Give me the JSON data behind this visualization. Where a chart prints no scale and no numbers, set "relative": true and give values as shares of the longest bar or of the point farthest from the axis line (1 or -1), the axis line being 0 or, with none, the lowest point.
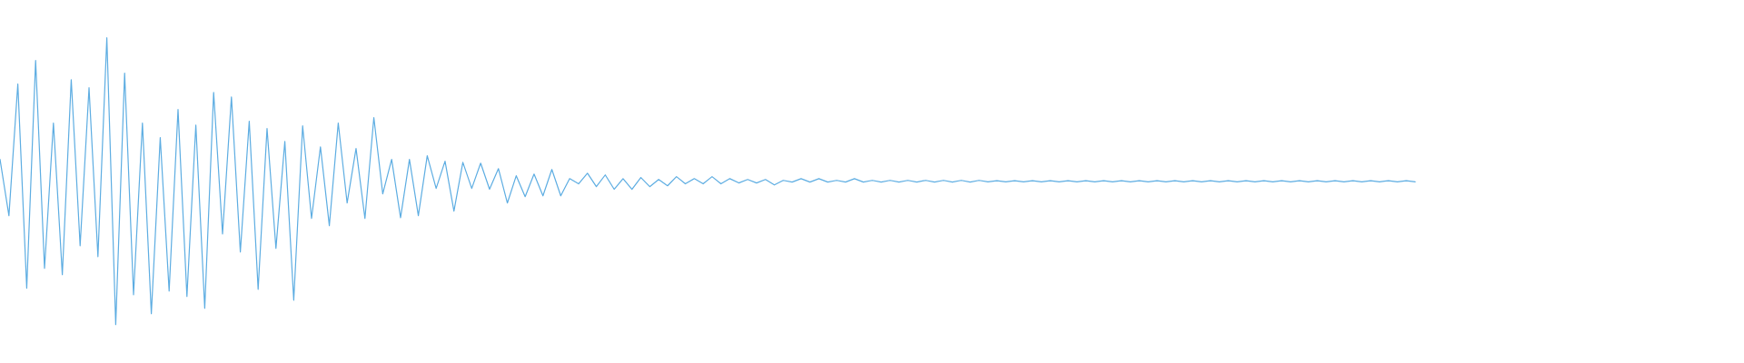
{
  "chart_data": {
    "type": "line",
    "relative": true,
    "color": "#5dade2",
    "categories": [
      null,
      null,
      null,
      null,
      null,
      null,
      null,
      null,
      null,
      null,
      null,
      null,
      null,
      null,
      null,
      null,
      null,
      null,
      null,
      null,
      null,
      null,
      null,
      null,
      null,
      null,
      null,
      null,
      null,
      null,
      null,
      null,
      null,
      null,
      null,
      null,
      null,
      null,
      null,
      null,
      null,
      null,
      null,
      null,
      null,
      null,
      null,
      null,
      null,
      null,
      null,
      null,
      null,
      null,
      null,
      null,
      null,
      null,
      null,
      null,
      null,
      null,
      null,
      null,
      null,
      null,
      null,
      null,
      null,
      null,
      null,
      null,
      null,
      null,
      null,
      null,
      null,
      null,
      null,
      null,
      null,
      null,
      null,
      null,
      null,
      null,
      null,
      null,
      null,
      null,
      null,
      null,
      null,
      null,
      null,
      null,
      null,
      null,
      null,
      null,
      null,
      null,
      null,
      null,
      null,
      null,
      null,
      null,
      null,
      null,
      null,
      null,
      null,
      null,
      null,
      null,
      null,
      null,
      null,
      null,
      null,
      null,
      null,
      null,
      null,
      null,
      null,
      null,
      null,
      null,
      null,
      null,
      null,
      null,
      null,
      null,
      null,
      null,
      null,
      null,
      null,
      null,
      null,
      null,
      null,
      null,
      null,
      null,
      null,
      null,
      null,
      null,
      null,
      null,
      null,
      null,
      null,
      null,
      null,
      null
    ],
    "values": [
      0.576,
      0.38,
      0.839,
      0.127,
      0.921,
      0.196,
      0.703,
      0.174,
      0.854,
      0.275,
      0.826,
      0.237,
      1.0,
      0.0,
      0.877,
      0.104,
      0.703,
      0.038,
      0.652,
      0.117,
      0.75,
      0.098,
      0.696,
      0.057,
      0.81,
      0.316,
      0.794,
      0.253,
      0.709,
      0.123,
      0.684,
      0.266,
      0.639,
      0.085,
      0.693,
      0.37,
      0.62,
      0.345,
      0.703,
      0.424,
      0.614,
      0.37,
      0.722,
      0.456,
      0.576,
      0.373,
      0.576,
      0.38,
      0.589,
      0.475,
      0.57,
      0.396,
      0.566,
      0.475,
      0.563,
      0.472,
      0.544,
      0.424,
      0.519,
      0.446,
      0.525,
      0.449,
      0.541,
      0.449,
      0.509,
      0.491,
      0.528,
      0.481,
      0.522,
      0.472,
      0.509,
      0.472,
      0.513,
      0.481,
      0.506,
      0.484,
      0.516,
      0.491,
      0.509,
      0.491,
      0.516,
      0.491,
      0.509,
      0.494,
      0.506,
      0.494,
      0.506,
      0.487,
      0.503,
      0.497,
      0.509,
      0.497,
      0.509,
      0.497,
      0.503,
      0.497,
      0.509,
      0.497,
      0.503,
      0.497,
      0.503,
      0.497,
      0.503,
      0.497,
      0.503,
      0.497,
      0.503,
      0.497,
      0.503,
      0.497,
      0.503,
      0.498,
      0.502,
      0.498,
      0.502,
      0.498,
      0.502,
      0.498,
      0.502,
      0.498,
      0.502,
      0.498,
      0.502,
      0.498,
      0.502,
      0.498,
      0.502,
      0.498,
      0.502,
      0.498,
      0.502,
      0.498,
      0.502,
      0.498,
      0.502,
      0.498,
      0.502,
      0.498,
      0.502,
      0.498,
      0.502,
      0.498,
      0.502,
      0.498,
      0.502,
      0.498,
      0.502,
      0.498,
      0.502,
      0.498,
      0.502,
      0.498,
      0.502,
      0.498,
      0.502,
      0.498,
      0.502,
      0.498,
      0.502,
      0.498
    ]
  }
}
